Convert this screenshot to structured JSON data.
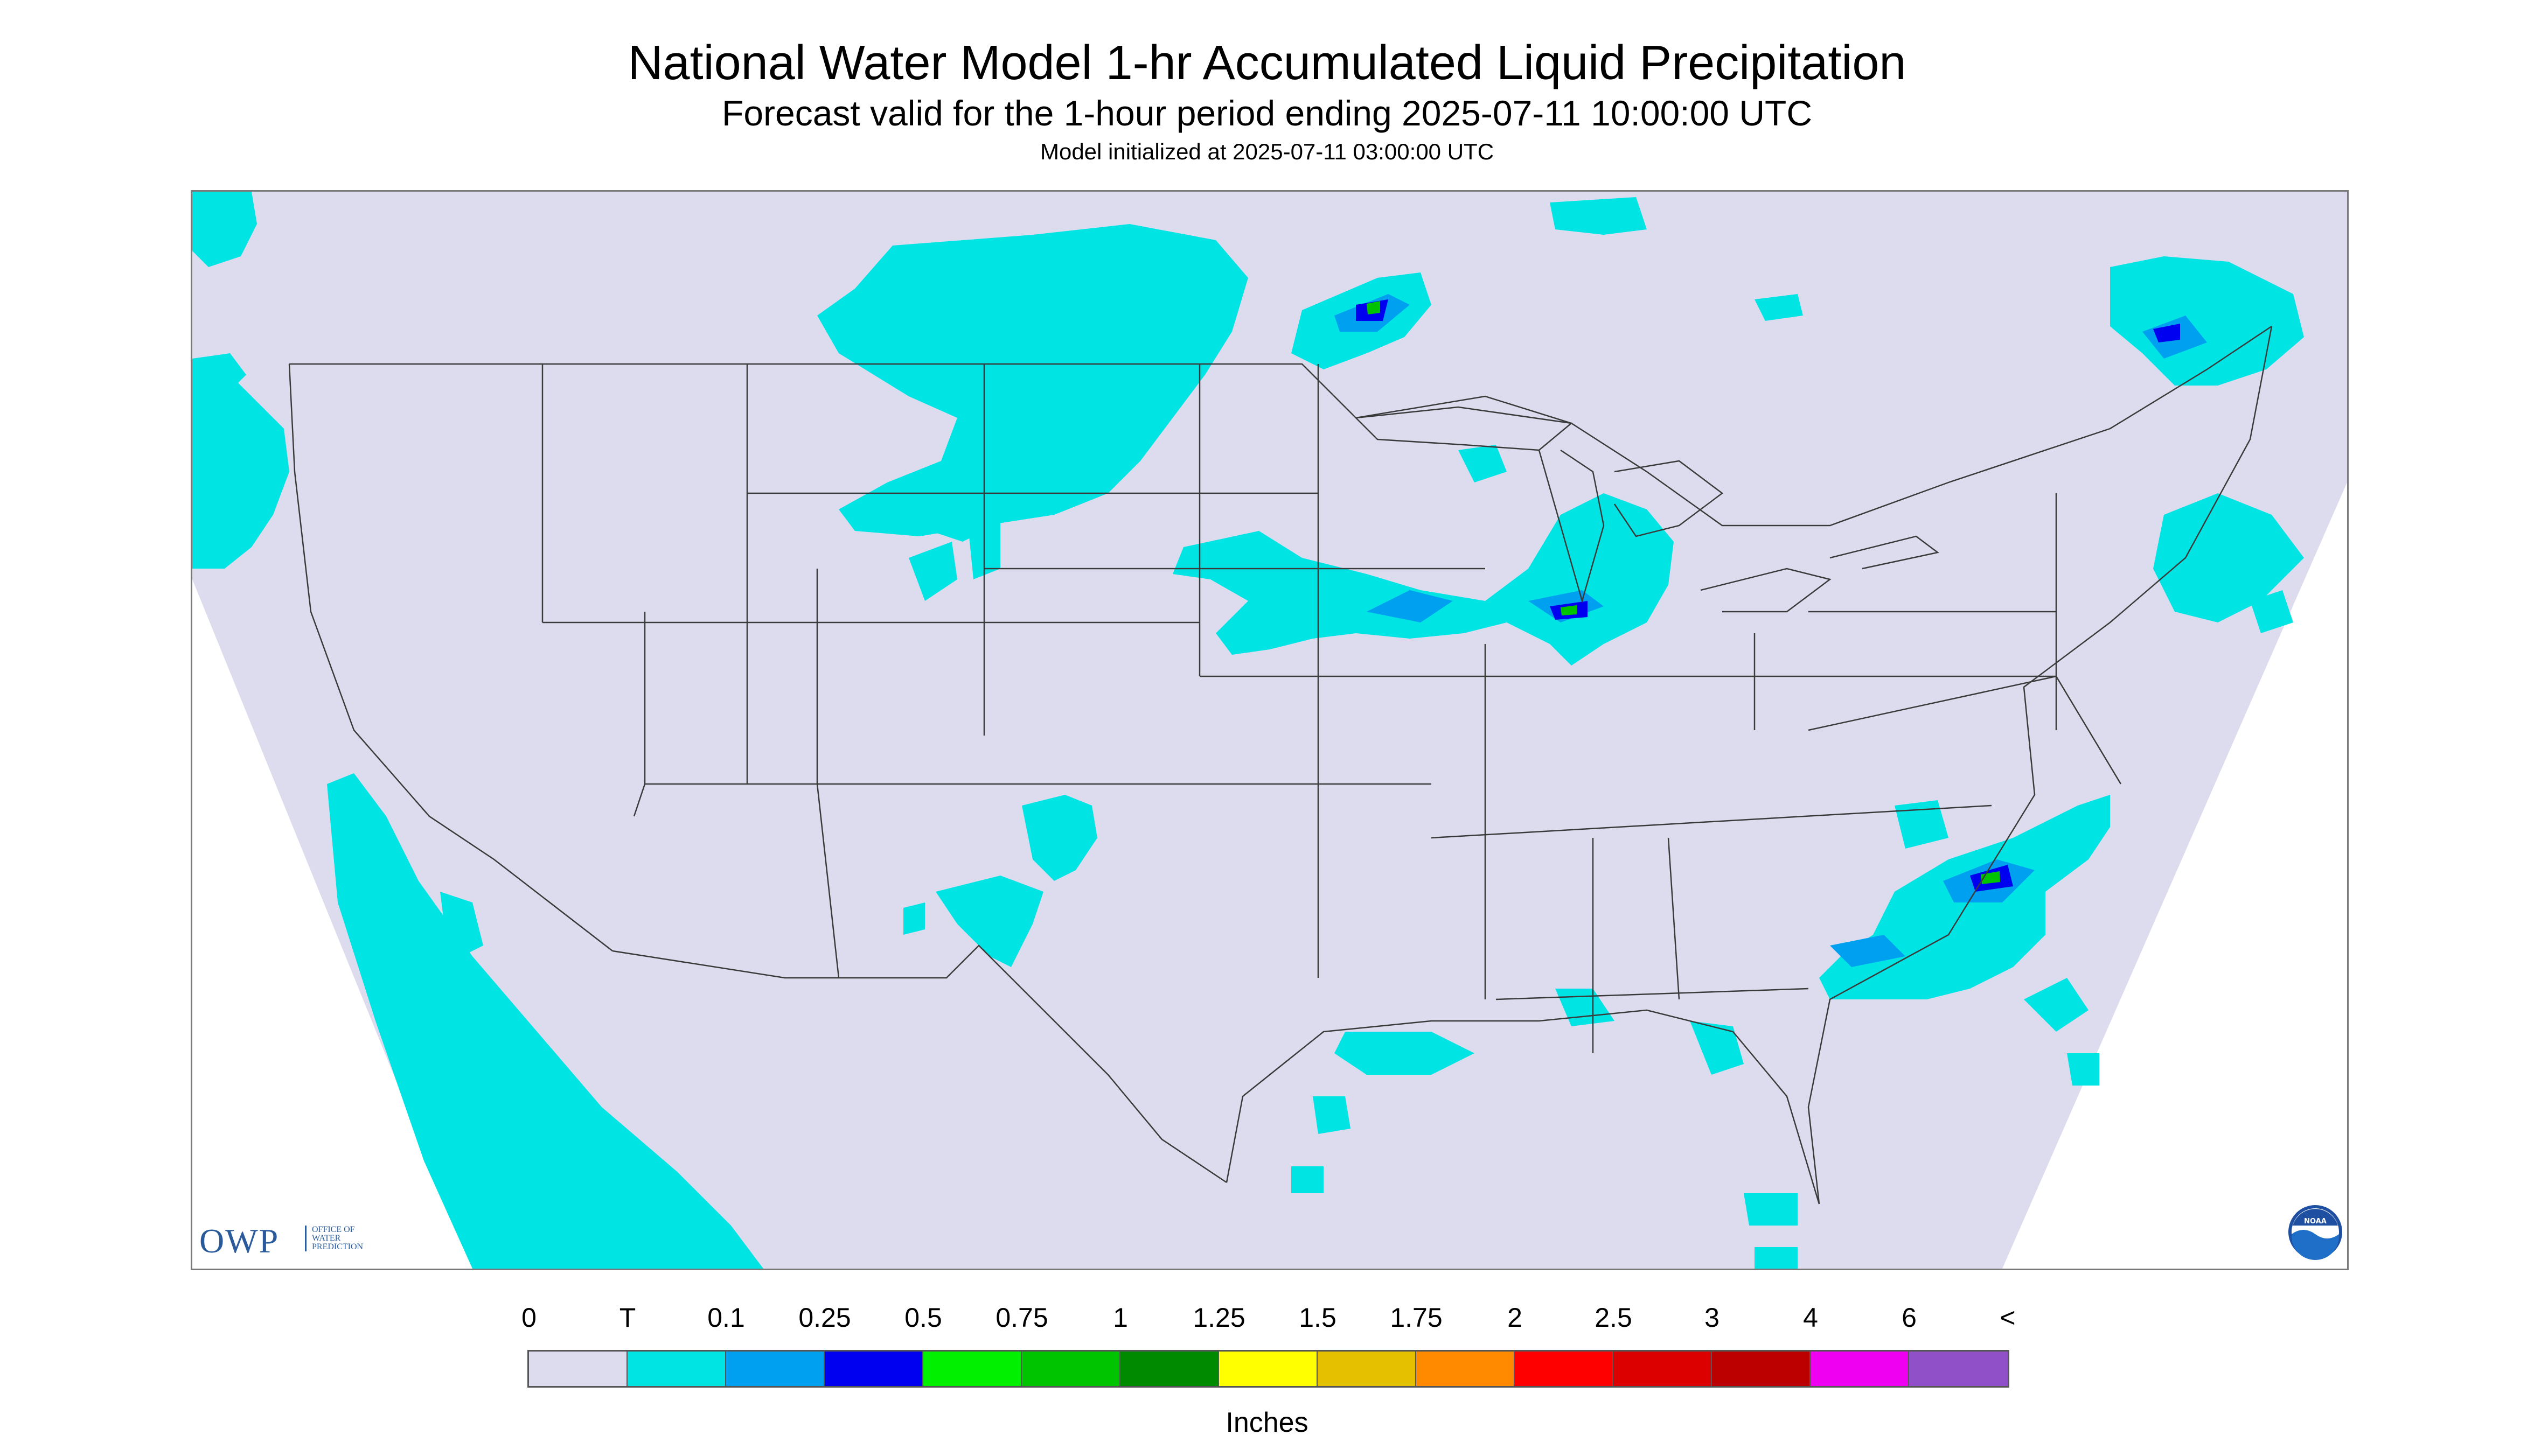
{
  "header": {
    "title": "National Water Model 1-hr Accumulated Liquid Precipitation",
    "subtitle": "Forecast valid for the 1-hour period ending 2025-07-11 10:00:00 UTC",
    "init_line": "Model initialized at 2025-07-11 03:00:00 UTC"
  },
  "logos": {
    "owp_mark": "OWP",
    "owp_text": [
      "OFFICE OF",
      "WATER",
      "PREDICTION"
    ],
    "noaa_text": "NOAA"
  },
  "legend": {
    "labels": [
      "0",
      "T",
      "0.1",
      "0.25",
      "0.5",
      "0.75",
      "1",
      "1.25",
      "1.5",
      "1.75",
      "2",
      "2.5",
      "3",
      "4",
      "6",
      "<"
    ],
    "colors": [
      "#dcdcee",
      "#00e4e4",
      "#00a0f0",
      "#0000f0",
      "#00f000",
      "#00c400",
      "#008a00",
      "#ffff00",
      "#e4c000",
      "#ff8a00",
      "#ff0000",
      "#dc0000",
      "#bc0000",
      "#f000f0",
      "#9050c8"
    ],
    "units": "Inches"
  },
  "map": {
    "land_color": "#dcdcee",
    "outside_color": "#ffffff",
    "border_color": "#3a3a3a"
  }
}
